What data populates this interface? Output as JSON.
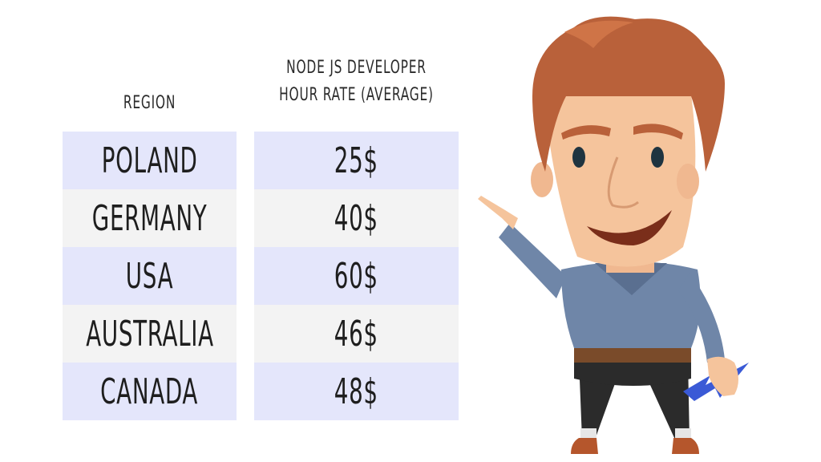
{
  "table": {
    "header_region": "REGION",
    "header_rate_line1": "NODE JS DEVELOPER",
    "header_rate_line2": "HOUR RATE (AVERAGE)",
    "rows": [
      {
        "region": "POLAND",
        "rate": "25$"
      },
      {
        "region": "GERMANY",
        "rate": "40$"
      },
      {
        "region": "USA",
        "rate": "60$"
      },
      {
        "region": "AUSTRALIA",
        "rate": "46$"
      },
      {
        "region": "CANADA",
        "rate": "48$"
      }
    ]
  },
  "colors": {
    "row_odd": "#e4e6fb",
    "row_even": "#f3f3f3",
    "hair": "#b9613a",
    "shirt": "#6f86a8",
    "skin": "#f5c49c",
    "arrow": "#3a5ad6"
  },
  "illustration": {
    "character": "cartoon-man-pointing",
    "icon": "blue-arrow-icon"
  }
}
